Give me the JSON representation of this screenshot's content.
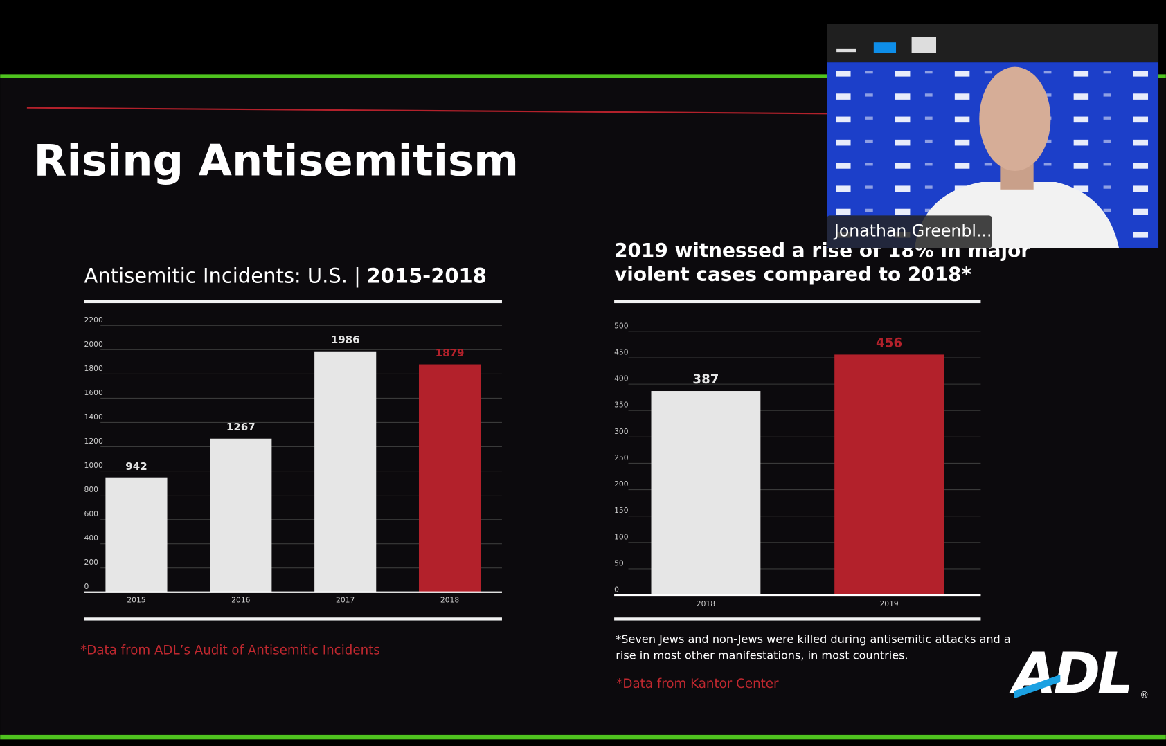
{
  "slide": {
    "title": "Rising Antisemitism",
    "logo": "ADL",
    "logo_mark": "®"
  },
  "chart_data": [
    {
      "type": "bar",
      "title": "Antisemitic Incidents: U.S. |",
      "title_emphasis": "2015-2018",
      "categories": [
        "2015",
        "2016",
        "2017",
        "2018"
      ],
      "values": [
        942,
        1267,
        1986,
        1879
      ],
      "colors": [
        "#e6e6e6",
        "#e6e6e6",
        "#e6e6e6",
        "#b3212b"
      ],
      "ylim": [
        0,
        2200
      ],
      "yticks": [
        0,
        200,
        400,
        600,
        800,
        1000,
        1200,
        1400,
        1600,
        1800,
        2000,
        2200
      ],
      "grid": true,
      "source": "*Data from ADL’s Audit of Antisemitic Incidents"
    },
    {
      "type": "bar",
      "title_lines": [
        "2019 witnessed a rise of 18% in major",
        "violent cases compared to 2018*"
      ],
      "categories": [
        "2018",
        "2019"
      ],
      "values": [
        387,
        456
      ],
      "colors": [
        "#e6e6e6",
        "#b3212b"
      ],
      "ylim": [
        0,
        500
      ],
      "yticks": [
        0,
        50,
        100,
        150,
        200,
        250,
        300,
        350,
        400,
        450,
        500
      ],
      "grid": true,
      "footnote_lines": [
        "*Seven Jews and non-Jews were killed during antisemitic attacks and a",
        "rise in most other manifestations, in most countries."
      ],
      "source": "*Data from Kantor Center"
    }
  ],
  "video": {
    "participant": "Jonathan Greenbl..."
  }
}
